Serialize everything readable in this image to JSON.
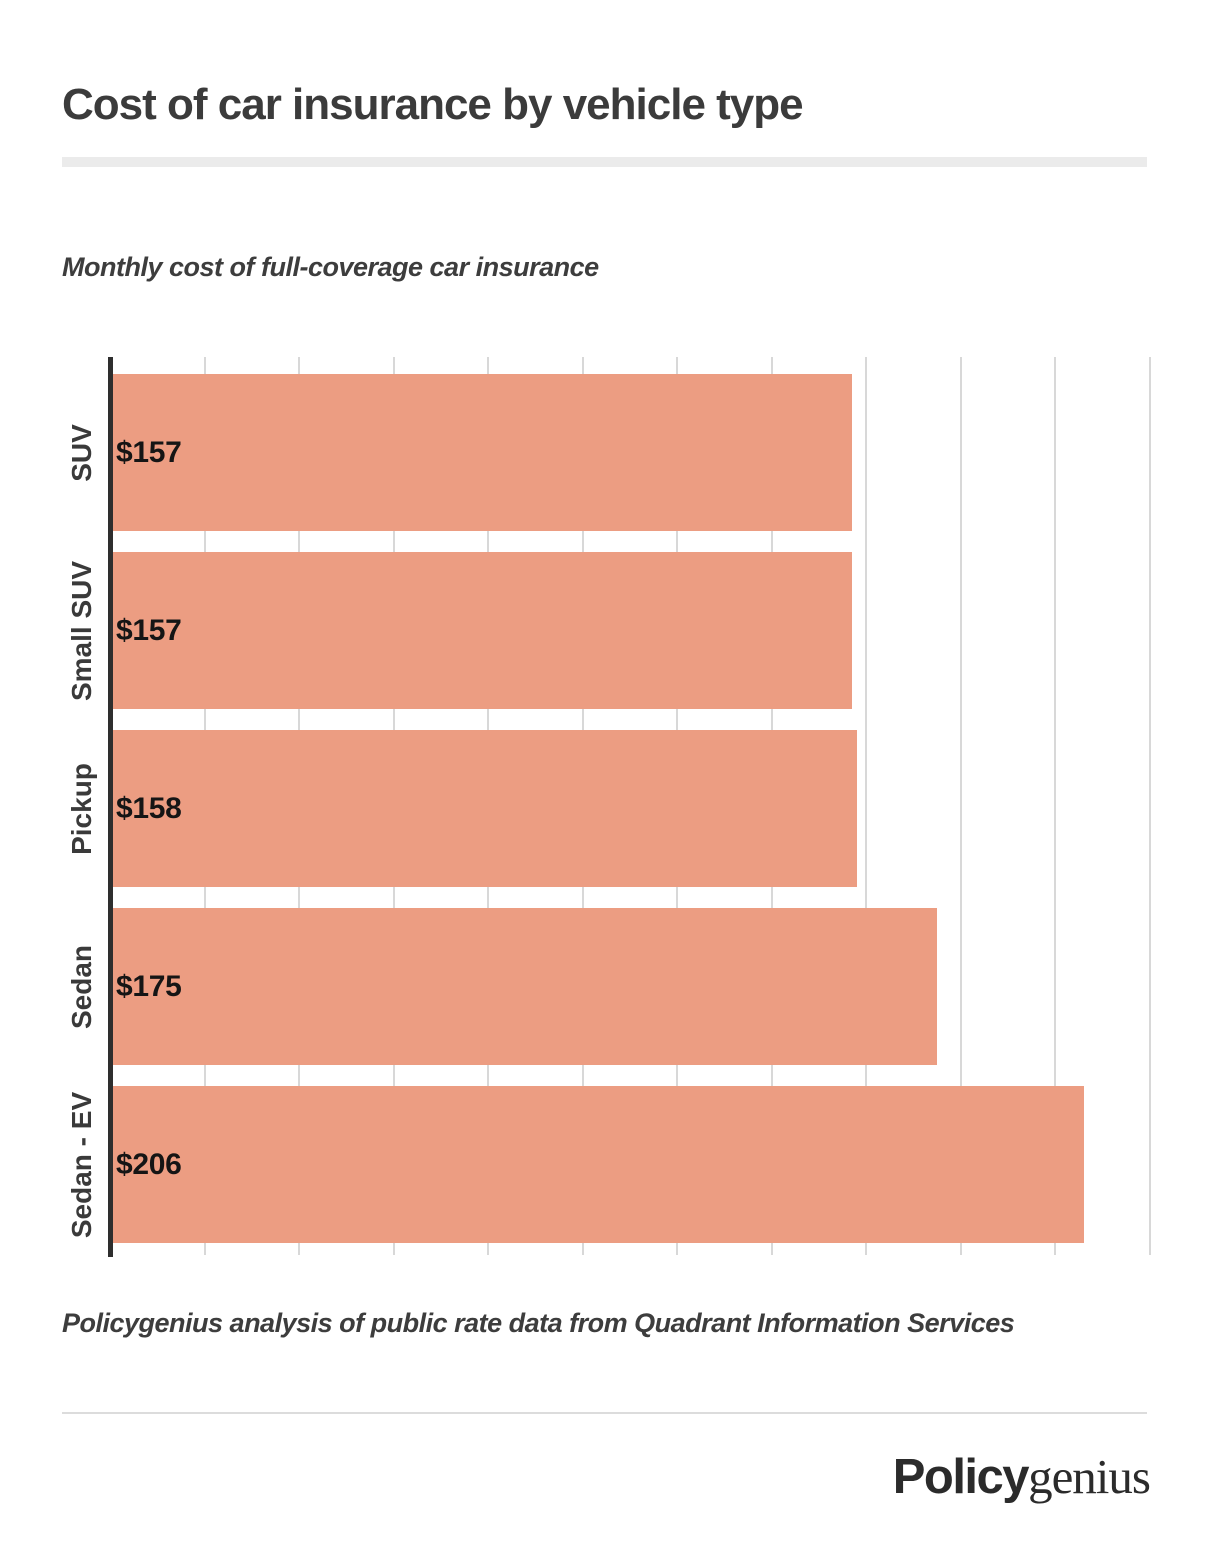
{
  "header": {
    "title": "Cost of car insurance by vehicle type"
  },
  "chart": {
    "subtitle": "Monthly cost of full-coverage car insurance"
  },
  "chart_data": {
    "type": "bar",
    "orientation": "horizontal",
    "title": "Cost of car insurance by vehicle type",
    "subtitle": "Monthly cost of full-coverage car insurance",
    "categories": [
      "SUV",
      "Small SUV",
      "Pickup",
      "Sedan",
      "Sedan - EV"
    ],
    "values": [
      157,
      157,
      158,
      175,
      206
    ],
    "value_labels": [
      "$157",
      "$157",
      "$158",
      "$175",
      "$206"
    ],
    "value_prefix": "$",
    "xlim": [
      0,
      220
    ],
    "gridline_step": 20,
    "grid": true,
    "legend": false,
    "bar_color": "#ec9d82",
    "axis_color": "#2e2e2e",
    "gridline_color": "#d8d8d8",
    "value_label_color": "#151515",
    "category_label_color": "#3a3a3a"
  },
  "footer": {
    "source": "Policygenius analysis of public rate data from Quadrant Information Services",
    "logo": {
      "bold": "Policy",
      "serif": "genius"
    }
  }
}
